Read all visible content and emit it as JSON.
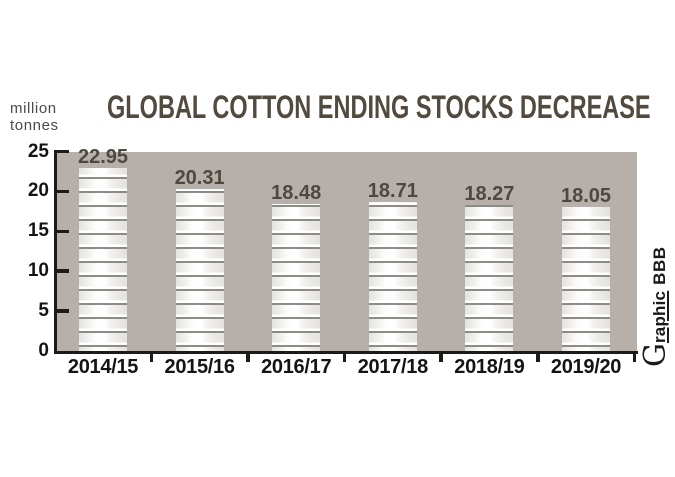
{
  "unit": {
    "line1": "million",
    "line2": "tonnes"
  },
  "credit": {
    "initial": "G",
    "rest": "raphic",
    "suffix": "BBB"
  },
  "colors": {
    "background": "#ffffff",
    "plot_bg": "#b7afa9",
    "axis": "#1d1b18",
    "title_text": "#52493f",
    "value_text": "#4f4841",
    "tick_text": "#161412",
    "unit_text": "#4b4b4b",
    "bar_highlight": "#ffffff",
    "bar_separator": "#8d8b86",
    "credit_text": "#1a1a1a"
  },
  "chart_data": {
    "type": "bar",
    "title": "GLOBAL COTTON ENDING STOCKS DECREASE",
    "ylabel": "million tonnes",
    "xlabel": "",
    "categories": [
      "2014/15",
      "2015/16",
      "2016/17",
      "2017/18",
      "2018/19",
      "2019/20"
    ],
    "values": [
      22.95,
      20.31,
      18.48,
      18.71,
      18.27,
      18.05
    ],
    "value_labels": [
      "22.95",
      "20.31",
      "18.48",
      "18.71",
      "18.27",
      "18.05"
    ],
    "y_ticks": [
      25,
      20,
      15,
      10,
      5,
      0
    ],
    "y_tick_labels": [
      "25",
      "20",
      "15",
      "10",
      "5",
      "0"
    ],
    "ylim": [
      0,
      25
    ],
    "grid": false,
    "legend": false,
    "bar_texture": "stacked-bale-stripes",
    "credit": "Graphic BBB"
  }
}
